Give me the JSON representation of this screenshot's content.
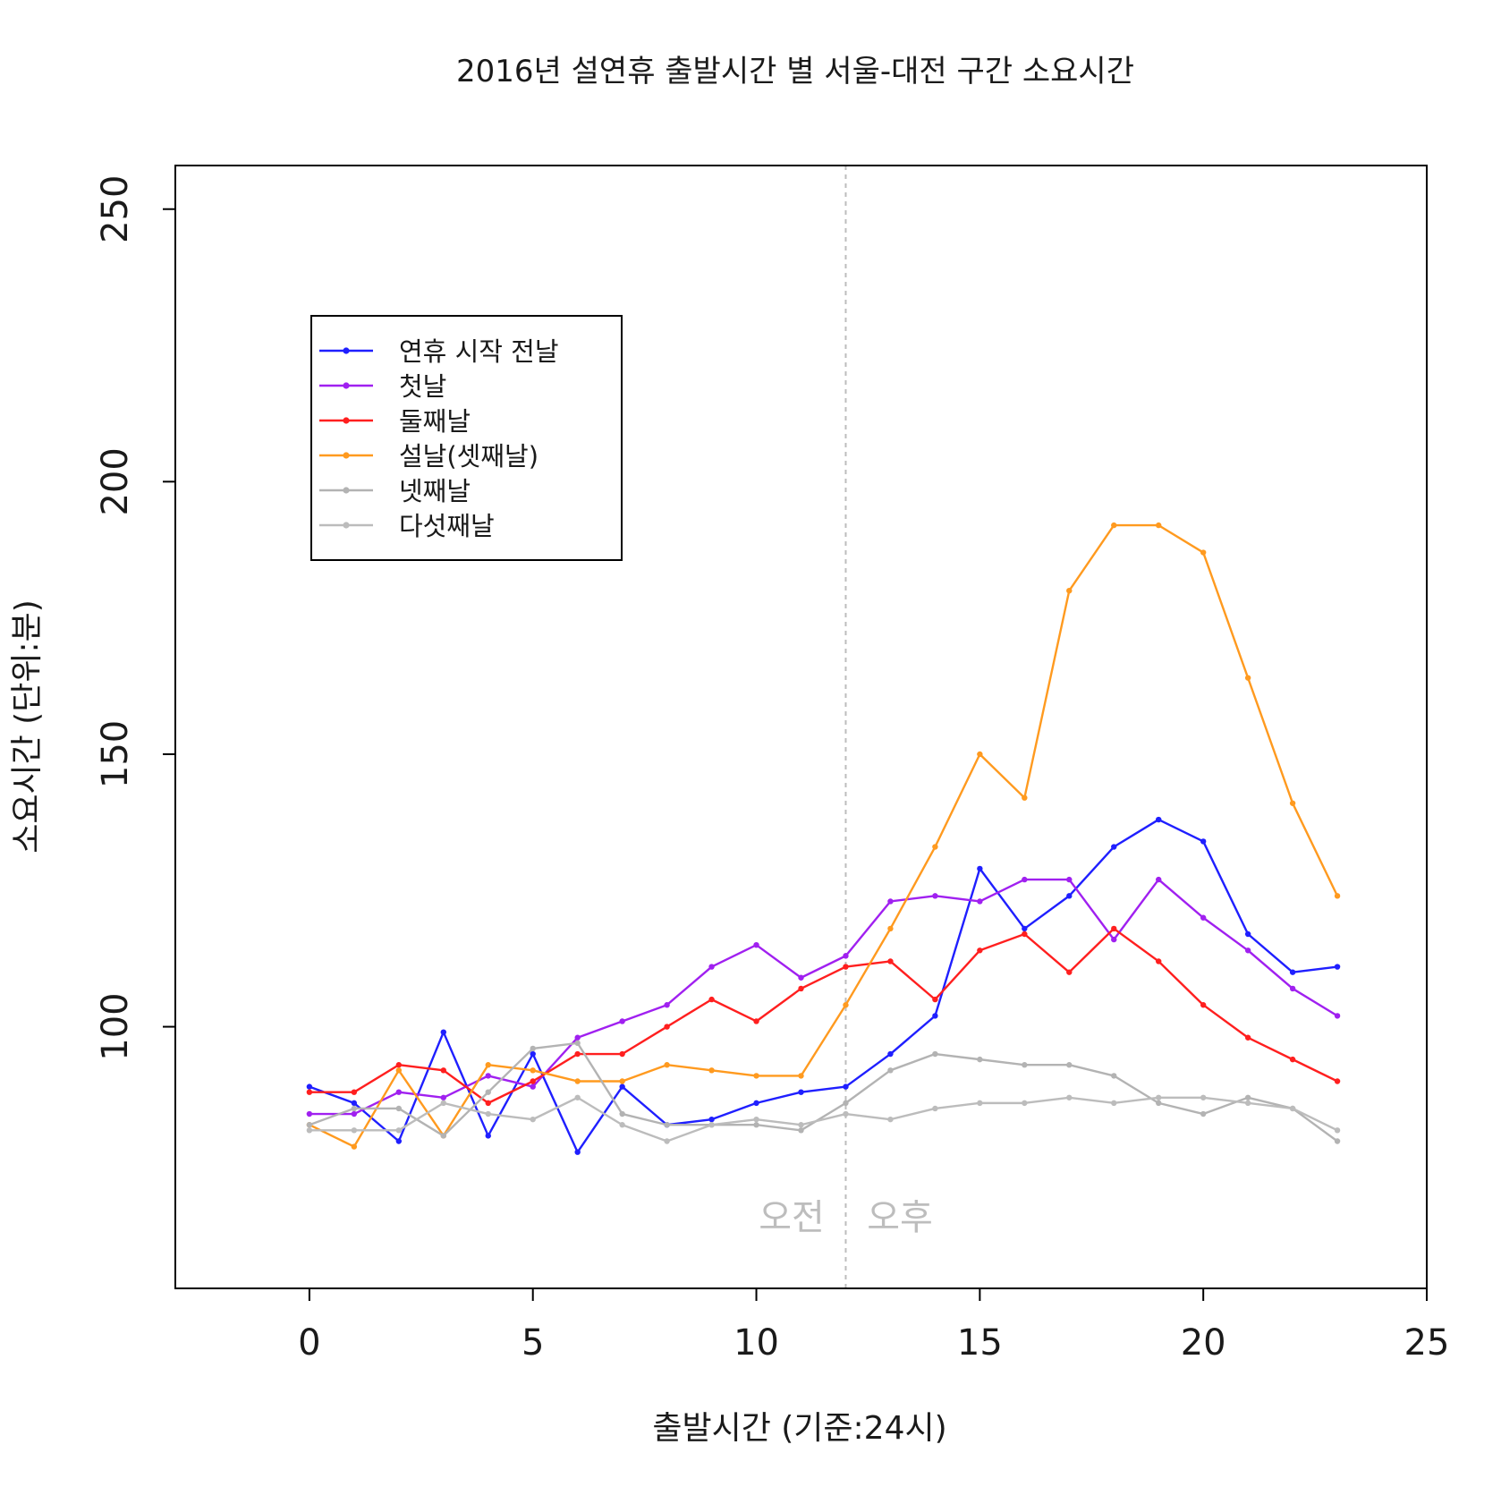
{
  "chart_data": {
    "type": "line",
    "title": "2016년 설연휴 출발시간 별 서울-대전 구간 소요시간",
    "xlabel": "출발시간 (기준:24시)",
    "ylabel": "소요시간 (단위:분)",
    "xlim": [
      -3,
      25
    ],
    "ylim": [
      52,
      258
    ],
    "xticks": [
      "0",
      "5",
      "10",
      "15",
      "20",
      "25"
    ],
    "yticks": [
      "100",
      "150",
      "200",
      "250"
    ],
    "grid": false,
    "legend_position": "top-left",
    "reference_line": {
      "x": 12,
      "style": "dashed",
      "color": "#bdbdbd"
    },
    "annotations": {
      "am": "오전",
      "pm": "오후"
    },
    "x": [
      0,
      1,
      2,
      3,
      4,
      5,
      6,
      7,
      8,
      9,
      10,
      11,
      12,
      13,
      14,
      15,
      16,
      17,
      18,
      19,
      20,
      21,
      22,
      23
    ],
    "series": [
      {
        "name": "연휴 시작 전날",
        "color": "#1f1fff",
        "values": [
          89,
          86,
          79,
          99,
          80,
          95,
          77,
          89,
          82,
          83,
          86,
          88,
          89,
          95,
          102,
          129,
          118,
          124,
          133,
          138,
          134,
          117,
          110,
          111
        ]
      },
      {
        "name": "첫날",
        "color": "#a020f0",
        "values": [
          84,
          84,
          88,
          87,
          91,
          89,
          98,
          101,
          104,
          111,
          115,
          109,
          113,
          123,
          124,
          123,
          127,
          127,
          116,
          127,
          120,
          114,
          107,
          102
        ]
      },
      {
        "name": "둘째날",
        "color": "#ff1f1f",
        "values": [
          88,
          88,
          93,
          92,
          86,
          90,
          95,
          95,
          100,
          105,
          101,
          107,
          111,
          112,
          105,
          114,
          117,
          110,
          118,
          112,
          104,
          98,
          94,
          90
        ]
      },
      {
        "name": "설날(셋째날)",
        "color": "#ff9a1f",
        "values": [
          82,
          78,
          92,
          80,
          93,
          92,
          90,
          90,
          93,
          92,
          91,
          91,
          104,
          118,
          133,
          150,
          142,
          180,
          192,
          192,
          187,
          164,
          141,
          124
        ]
      },
      {
        "name": "넷째날",
        "color": "#b3b3b3",
        "values": [
          82,
          85,
          85,
          80,
          88,
          96,
          97,
          84,
          82,
          82,
          82,
          81,
          86,
          92,
          95,
          94,
          93,
          93,
          91,
          86,
          84,
          87,
          85,
          79
        ]
      },
      {
        "name": "다섯째날",
        "color": "#bcbcbc",
        "values": [
          81,
          81,
          81,
          86,
          84,
          83,
          87,
          82,
          79,
          82,
          83,
          82,
          84,
          83,
          85,
          86,
          86,
          87,
          86,
          87,
          87,
          86,
          85,
          81
        ]
      }
    ]
  }
}
